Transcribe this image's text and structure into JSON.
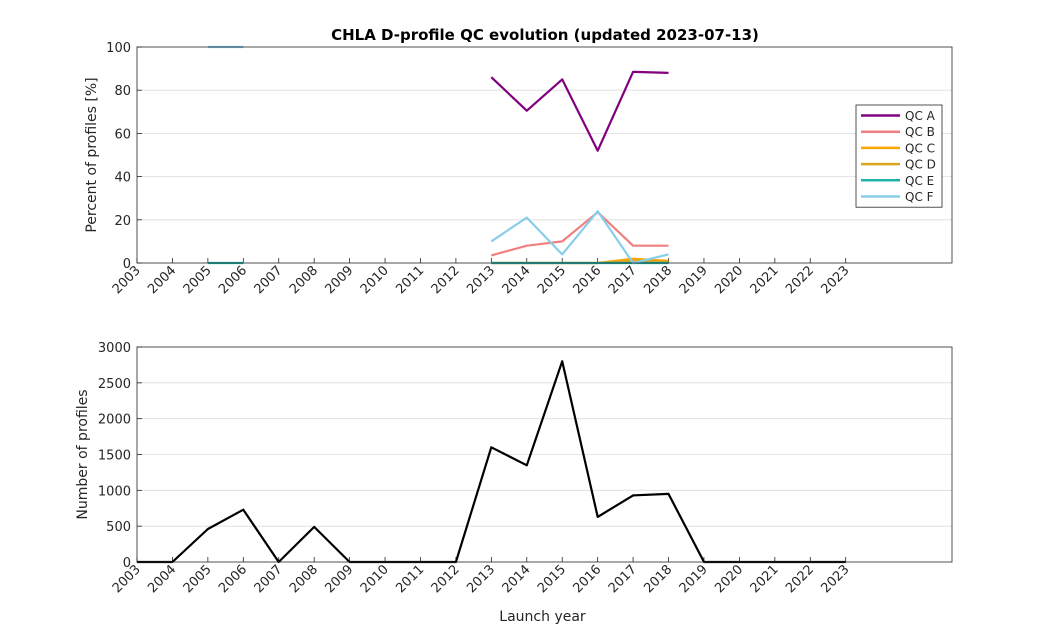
{
  "chart_data": [
    {
      "type": "line",
      "title": "CHLA D-profile QC evolution (updated 2023-07-13)",
      "xlabel": "",
      "ylabel": "Percent of profiles [%]",
      "xlim": [
        2003,
        2026
      ],
      "ylim": [
        0,
        100
      ],
      "x_ticks": [
        "2003",
        "2004",
        "2005",
        "2006",
        "2007",
        "2008",
        "2009",
        "2010",
        "2011",
        "2012",
        "2013",
        "2014",
        "2015",
        "2016",
        "2017",
        "2018",
        "2019",
        "2020",
        "2021",
        "2022",
        "2023"
      ],
      "y_ticks": [
        0,
        20,
        40,
        60,
        80,
        100
      ],
      "grid": true,
      "legend": "right",
      "series": [
        {
          "name": "QC A",
          "color": "#800080",
          "segments": [
            {
              "x": [
                2013,
                2014,
                2015,
                2016,
                2017,
                2018
              ],
              "y": [
                86,
                70.5,
                85,
                52,
                88.5,
                88
              ]
            }
          ]
        },
        {
          "name": "QC B",
          "color": "#f08080",
          "segments": [
            {
              "x": [
                2013,
                2014,
                2015,
                2016,
                2017,
                2018
              ],
              "y": [
                3.5,
                8,
                10,
                23.5,
                8,
                8
              ]
            }
          ]
        },
        {
          "name": "QC C",
          "color": "#ffa500",
          "segments": [
            {
              "x": [
                2013,
                2014,
                2015,
                2016,
                2017,
                2018
              ],
              "y": [
                0,
                0,
                0,
                0,
                2,
                1
              ]
            }
          ]
        },
        {
          "name": "QC D",
          "color": "#daa520",
          "segments": [
            {
              "x": [
                2013,
                2014,
                2015,
                2016,
                2017,
                2018
              ],
              "y": [
                0,
                0,
                0,
                0,
                1,
                0.5
              ]
            }
          ]
        },
        {
          "name": "QC E",
          "color": "#20b2aa",
          "segments": [
            {
              "x": [
                2005,
                2006
              ],
              "y": [
                0,
                0
              ]
            },
            {
              "x": [
                2013,
                2014,
                2015,
                2016,
                2017,
                2018
              ],
              "y": [
                0,
                0,
                0,
                0,
                0,
                0
              ]
            }
          ]
        },
        {
          "name": "QC F",
          "color": "#87ceeb",
          "segments": [
            {
              "x": [
                2005,
                2006
              ],
              "y": [
                100,
                100
              ]
            },
            {
              "x": [
                2013,
                2014,
                2015,
                2016,
                2017,
                2018
              ],
              "y": [
                10,
                21,
                4,
                24,
                0,
                4
              ]
            }
          ]
        }
      ]
    },
    {
      "type": "line",
      "title": "",
      "xlabel": "Launch year",
      "ylabel": "Number of profiles",
      "xlim": [
        2003,
        2026
      ],
      "ylim": [
        0,
        3000
      ],
      "x_ticks": [
        "2003",
        "2004",
        "2005",
        "2006",
        "2007",
        "2008",
        "2009",
        "2010",
        "2011",
        "2012",
        "2013",
        "2014",
        "2015",
        "2016",
        "2017",
        "2018",
        "2019",
        "2020",
        "2021",
        "2022",
        "2023"
      ],
      "y_ticks": [
        0,
        500,
        1000,
        1500,
        2000,
        2500,
        3000
      ],
      "grid": true,
      "series": [
        {
          "color": "#000000",
          "segments": [
            {
              "x": [
                2003,
                2004,
                2005,
                2006,
                2007,
                2008,
                2009,
                2010,
                2011,
                2012,
                2013,
                2014,
                2015,
                2016,
                2017,
                2018,
                2019,
                2020,
                2021,
                2022,
                2023
              ],
              "y": [
                0,
                0,
                460,
                730,
                0,
                490,
                0,
                0,
                0,
                0,
                1600,
                1350,
                2800,
                630,
                930,
                950,
                0,
                0,
                0,
                0,
                0
              ]
            }
          ]
        }
      ]
    }
  ]
}
